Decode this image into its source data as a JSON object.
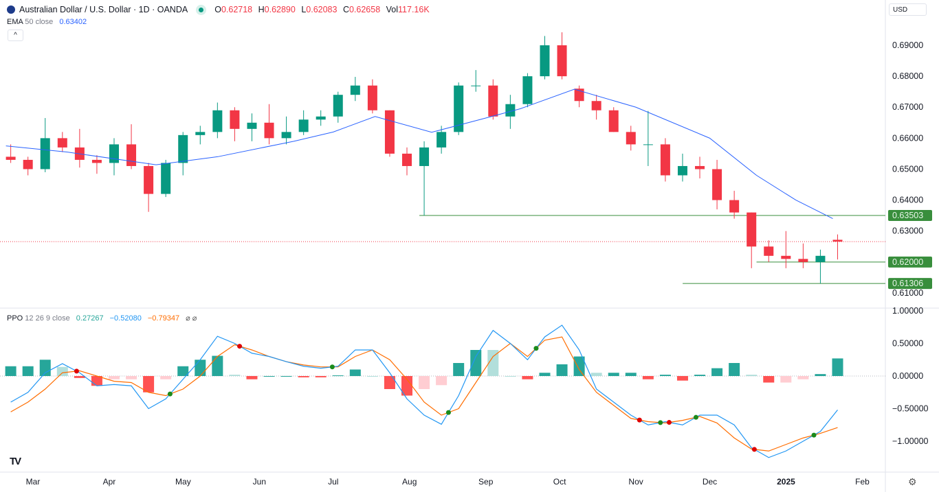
{
  "header": {
    "title": "Australian Dollar / U.S. Dollar · 1D · OANDA",
    "ohlc": [
      {
        "k": "O",
        "v": "0.62718"
      },
      {
        "k": "H",
        "v": "0.62890"
      },
      {
        "k": "L",
        "v": "0.62083"
      },
      {
        "k": "C",
        "v": "0.62658"
      },
      {
        "k": "Vol",
        "v": "117.16K"
      }
    ],
    "collapse": "^"
  },
  "ema": {
    "name": "EMA",
    "params": "50 close",
    "value": "0.63402"
  },
  "ppo": {
    "name": "PPO",
    "params": "12 26 9 close",
    "hist": "0.27267",
    "ppo": "−0.52080",
    "signal": "−0.79347",
    "extra": "⌀ ⌀"
  },
  "currency": "USD",
  "logo": "TV",
  "colors": {
    "up": "#089981",
    "down": "#f23645",
    "ema": "#2962ff",
    "ppo": "#2196f3",
    "signal": "#ff6d00",
    "level": "#388e3c"
  },
  "chart_data": [
    {
      "type": "candlestick",
      "ylim": [
        0.605,
        0.697
      ],
      "y_ticks": [
        "0.69000",
        "0.68000",
        "0.67000",
        "0.66000",
        "0.65000",
        "0.64000",
        "0.63000",
        "0.61000"
      ],
      "x_ticks": [
        "Mar",
        "Apr",
        "May",
        "Jun",
        "Jul",
        "Aug",
        "Sep",
        "Oct",
        "Nov",
        "Dec",
        "2025",
        "Feb"
      ],
      "x_tick_dates": [
        "2024-03-01",
        "2024-04-01",
        "2024-05-01",
        "2024-06-01",
        "2024-07-01",
        "2024-08-01",
        "2024-09-01",
        "2024-10-01",
        "2024-11-01",
        "2024-12-01",
        "2025-01-01",
        "2025-02-01"
      ],
      "candles_weekly": [
        [
          "2024-02-19",
          0.654,
          0.658,
          0.652,
          0.653
        ],
        [
          "2024-02-26",
          0.653,
          0.654,
          0.648,
          0.65
        ],
        [
          "2024-03-04",
          0.65,
          0.6665,
          0.649,
          0.66
        ],
        [
          "2024-03-11",
          0.66,
          0.662,
          0.6555,
          0.657
        ],
        [
          "2024-03-18",
          0.657,
          0.663,
          0.6505,
          0.653
        ],
        [
          "2024-03-25",
          0.653,
          0.6545,
          0.6485,
          0.652
        ],
        [
          "2024-04-01",
          0.652,
          0.66,
          0.648,
          0.658
        ],
        [
          "2024-04-08",
          0.658,
          0.6645,
          0.65,
          0.651
        ],
        [
          "2024-04-15",
          0.651,
          0.652,
          0.6362,
          0.642
        ],
        [
          "2024-04-22",
          0.642,
          0.653,
          0.641,
          0.652
        ],
        [
          "2024-04-29",
          0.652,
          0.662,
          0.648,
          0.661
        ],
        [
          "2024-05-06",
          0.661,
          0.664,
          0.658,
          0.662
        ],
        [
          "2024-05-13",
          0.662,
          0.6715,
          0.66,
          0.669
        ],
        [
          "2024-05-20",
          0.669,
          0.67,
          0.659,
          0.663
        ],
        [
          "2024-05-27",
          0.663,
          0.668,
          0.659,
          0.665
        ],
        [
          "2024-06-03",
          0.665,
          0.671,
          0.658,
          0.66
        ],
        [
          "2024-06-10",
          0.66,
          0.667,
          0.658,
          0.662
        ],
        [
          "2024-06-17",
          0.662,
          0.669,
          0.661,
          0.666
        ],
        [
          "2024-06-24",
          0.666,
          0.669,
          0.664,
          0.667
        ],
        [
          "2024-07-01",
          0.667,
          0.675,
          0.665,
          0.674
        ],
        [
          "2024-07-08",
          0.674,
          0.6798,
          0.672,
          0.677
        ],
        [
          "2024-07-15",
          0.677,
          0.679,
          0.668,
          0.669
        ],
        [
          "2024-07-22",
          0.669,
          0.669,
          0.654,
          0.655
        ],
        [
          "2024-07-29",
          0.655,
          0.657,
          0.648,
          0.651
        ],
        [
          "2024-08-05",
          0.651,
          0.659,
          0.635,
          0.657
        ],
        [
          "2024-08-12",
          0.657,
          0.664,
          0.655,
          0.662
        ],
        [
          "2024-08-19",
          0.662,
          0.678,
          0.661,
          0.677
        ],
        [
          "2024-08-26",
          0.677,
          0.682,
          0.675,
          0.677
        ],
        [
          "2024-09-02",
          0.677,
          0.679,
          0.666,
          0.667
        ],
        [
          "2024-09-09",
          0.667,
          0.674,
          0.663,
          0.671
        ],
        [
          "2024-09-16",
          0.671,
          0.681,
          0.67,
          0.68
        ],
        [
          "2024-09-23",
          0.68,
          0.693,
          0.679,
          0.69
        ],
        [
          "2024-09-30",
          0.69,
          0.6942,
          0.679,
          0.68
        ],
        [
          "2024-10-07",
          0.676,
          0.677,
          0.67,
          0.672
        ],
        [
          "2024-10-14",
          0.672,
          0.674,
          0.666,
          0.669
        ],
        [
          "2024-10-21",
          0.669,
          0.67,
          0.662,
          0.662
        ],
        [
          "2024-10-28",
          0.662,
          0.664,
          0.656,
          0.658
        ],
        [
          "2024-11-04",
          0.658,
          0.6688,
          0.651,
          0.658
        ],
        [
          "2024-11-11",
          0.658,
          0.66,
          0.646,
          0.648
        ],
        [
          "2024-11-18",
          0.648,
          0.655,
          0.646,
          0.651
        ],
        [
          "2024-11-25",
          0.651,
          0.654,
          0.647,
          0.65
        ],
        [
          "2024-12-02",
          0.65,
          0.653,
          0.637,
          0.64
        ],
        [
          "2024-12-09",
          0.64,
          0.643,
          0.634,
          0.636
        ],
        [
          "2024-12-16",
          0.636,
          0.636,
          0.618,
          0.625
        ],
        [
          "2024-12-23",
          0.625,
          0.627,
          0.62,
          0.622
        ],
        [
          "2024-12-30",
          0.622,
          0.63,
          0.618,
          0.621
        ],
        [
          "2025-01-06",
          0.621,
          0.626,
          0.618,
          0.62
        ],
        [
          "2025-01-13",
          0.62,
          0.624,
          0.61306,
          0.622
        ],
        [
          "2025-01-20",
          0.62718,
          0.6289,
          0.62083,
          0.62658
        ]
      ],
      "ema50": [
        [
          "2024-02-19",
          0.6575
        ],
        [
          "2024-03-15",
          0.6555
        ],
        [
          "2024-04-20",
          0.6514
        ],
        [
          "2024-05-15",
          0.654
        ],
        [
          "2024-06-15",
          0.659
        ],
        [
          "2024-07-01",
          0.662
        ],
        [
          "2024-07-18",
          0.667
        ],
        [
          "2024-08-10",
          0.6619
        ],
        [
          "2024-09-01",
          0.6665
        ],
        [
          "2024-09-15",
          0.6695
        ],
        [
          "2024-10-07",
          0.6758
        ],
        [
          "2024-11-01",
          0.67
        ],
        [
          "2024-12-01",
          0.66
        ],
        [
          "2024-12-20",
          0.648
        ],
        [
          "2025-01-05",
          0.64
        ],
        [
          "2025-01-20",
          0.63402
        ]
      ],
      "levels": [
        {
          "value": 0.63503,
          "label": "0.63503",
          "from": "2024-08-05"
        },
        {
          "value": 0.62,
          "label": "0.62000",
          "from": "2024-12-20"
        },
        {
          "value": 0.61306,
          "label": "0.61306",
          "from": "2024-11-20"
        }
      ],
      "last_price": 0.62658
    },
    {
      "type": "line+histogram",
      "title": "PPO 12 26 9 close",
      "ylim": [
        -1.35,
        1.0
      ],
      "y_ticks": [
        "1.00000",
        "0.50000",
        "0.00000",
        "−0.50000",
        "−1.00000"
      ],
      "ppo": [
        -0.4,
        -0.25,
        0.05,
        0.19,
        0.05,
        -0.15,
        -0.13,
        -0.15,
        -0.5,
        -0.35,
        -0.05,
        0.25,
        0.61,
        0.5,
        0.35,
        0.3,
        0.22,
        0.15,
        0.12,
        0.15,
        0.4,
        0.4,
        0.05,
        -0.35,
        -0.6,
        -0.74,
        -0.3,
        0.3,
        0.7,
        0.5,
        0.25,
        0.6,
        0.78,
        0.4,
        -0.2,
        -0.4,
        -0.6,
        -0.75,
        -0.7,
        -0.75,
        -0.6,
        -0.6,
        -0.75,
        -1.1,
        -1.25,
        -1.15,
        -1.0,
        -0.85,
        -0.52
      ],
      "signal": [
        -0.55,
        -0.4,
        -0.2,
        0.05,
        0.08,
        0.0,
        -0.08,
        -0.1,
        -0.25,
        -0.3,
        -0.2,
        0.0,
        0.3,
        0.48,
        0.4,
        0.3,
        0.22,
        0.17,
        0.14,
        0.14,
        0.3,
        0.4,
        0.25,
        -0.05,
        -0.4,
        -0.6,
        -0.5,
        -0.1,
        0.3,
        0.5,
        0.3,
        0.55,
        0.6,
        0.1,
        -0.25,
        -0.45,
        -0.65,
        -0.7,
        -0.72,
        -0.68,
        -0.62,
        -0.72,
        -0.95,
        -1.12,
        -1.15,
        -1.05,
        -0.95,
        -0.88,
        -0.79
      ]
    }
  ]
}
